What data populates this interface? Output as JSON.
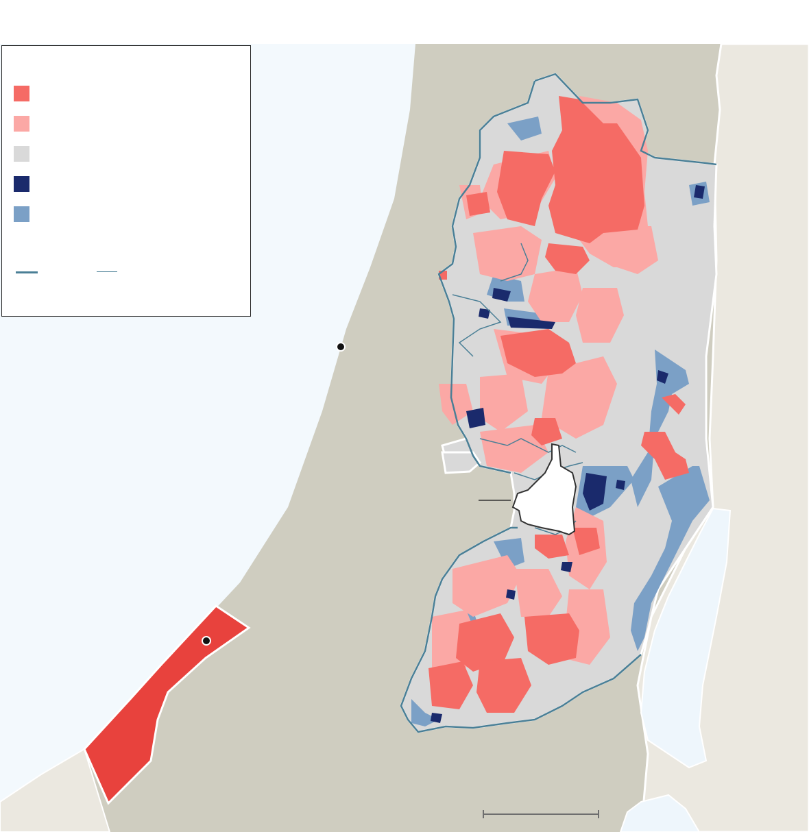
{
  "colors": {
    "sea": "#f3f9fd",
    "land_neighbor": "#cfcdc0",
    "land_east": "#ebe8e0",
    "dead_sea": "#eef6fc",
    "gaza": "#e8423d",
    "area_a": "#f56b65",
    "area_b": "#fba8a5",
    "area_c": "#d9d9d9",
    "settlements": "#1a2a6c",
    "settlement_councils": "#7ba0c6",
    "green_line": "#4a7f96",
    "barrier": "#4a7f96",
    "jerusalem_boundary": "#333333"
  },
  "legend": {
    "swatches": [
      {
        "key": "area_a",
        "color": "#f56b65"
      },
      {
        "key": "area_b",
        "color": "#fba8a5"
      },
      {
        "key": "area_c",
        "color": "#d9d9d9"
      },
      {
        "key": "settlements",
        "color": "#1a2a6c"
      },
      {
        "key": "settlement_councils",
        "color": "#7ba0c6"
      }
    ],
    "lines": [
      {
        "key": "green_line",
        "style": "thick"
      },
      {
        "key": "barrier",
        "style": "thin"
      }
    ]
  },
  "markers": [
    "city-marker-coast",
    "city-marker-gaza"
  ]
}
